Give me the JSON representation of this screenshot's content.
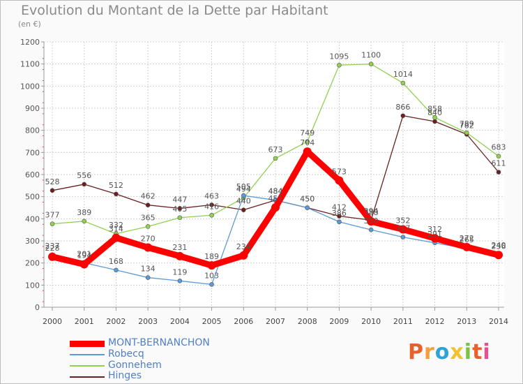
{
  "header": {
    "title": "Evolution du Montant de la Dette par Habitant",
    "subtitle": "(en €)"
  },
  "logo": {
    "text": "Proxiti",
    "colors": [
      "#e8612c",
      "#f2a03d",
      "#2ba3d8",
      "#f2c12e",
      "#7cc242",
      "#e8612c",
      "#e84f8e"
    ]
  },
  "chart_data": {
    "type": "line",
    "title": "Evolution du Montant de la Dette par Habitant",
    "subtitle": "(en €)",
    "xlabel": "",
    "ylabel": "",
    "ylim": [
      0,
      1200
    ],
    "yticks": [
      0,
      100,
      200,
      300,
      400,
      500,
      600,
      700,
      800,
      900,
      1000,
      1100,
      1200
    ],
    "grid": true,
    "legend_position": "bottom-left",
    "x": [
      2000,
      2001,
      2002,
      2003,
      2004,
      2005,
      2006,
      2007,
      2008,
      2009,
      2010,
      2011,
      2012,
      2013,
      2014
    ],
    "series": [
      {
        "name": "MONT-BERNANCHON",
        "color": "#ff0000",
        "values": [
          228,
          194,
          314,
          270,
          231,
          189,
          234,
          451,
          704,
          573,
          388,
          352,
          312,
          272,
          236
        ]
      },
      {
        "name": "Robecq",
        "color": "#5b9bd5",
        "values": [
          237,
          201,
          168,
          134,
          119,
          103,
          505,
          484,
          450,
          386,
          350,
          317,
          291,
          265,
          240
        ]
      },
      {
        "name": "Gonnehem",
        "color": "#92d050",
        "values": [
          377,
          389,
          332,
          365,
          405,
          416,
          494,
          673,
          749,
          1095,
          1100,
          1014,
          858,
          789,
          683
        ]
      },
      {
        "name": "Hinges",
        "color": "#6b1f1f",
        "values": [
          528,
          556,
          512,
          462,
          447,
          463,
          440,
          484,
          450,
          412,
          394,
          866,
          840,
          782,
          611
        ]
      }
    ]
  }
}
